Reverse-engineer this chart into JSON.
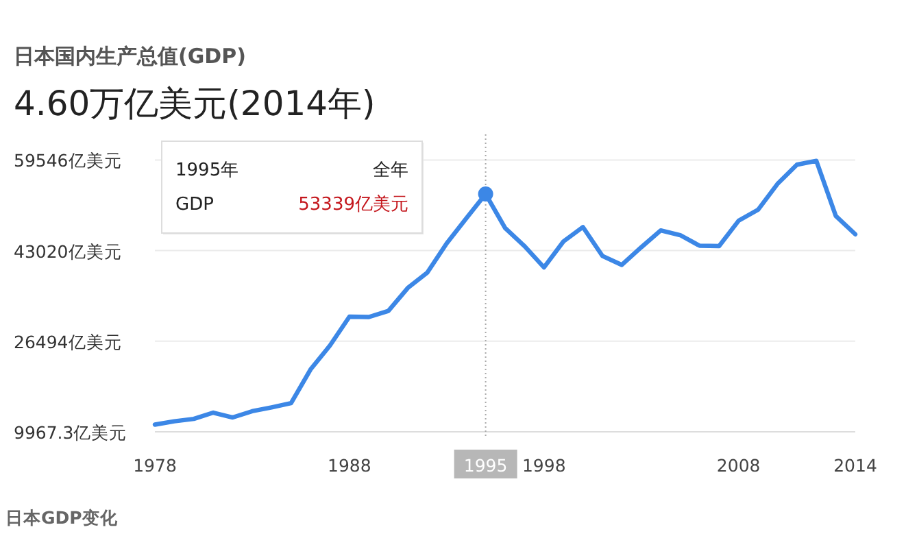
{
  "chart_data": {
    "type": "line",
    "title": "日本国内生产总值(GDP)",
    "subtitle": "4.60万亿美元(2014年)",
    "x": [
      1978,
      1979,
      1980,
      1981,
      1982,
      1983,
      1984,
      1985,
      1986,
      1987,
      1988,
      1989,
      1990,
      1991,
      1992,
      1993,
      1994,
      1995,
      1996,
      1997,
      1998,
      1999,
      2000,
      2001,
      2002,
      2003,
      2004,
      2005,
      2006,
      2007,
      2008,
      2009,
      2010,
      2011,
      2012,
      2013,
      2014
    ],
    "series": [
      {
        "color": "#3c87e6",
        "values": [
          11280,
          11880,
          12330,
          13460,
          12590,
          13720,
          14430,
          15210,
          21330,
          25710,
          30960,
          30900,
          32010,
          36210,
          39010,
          44340,
          48880,
          53339,
          47150,
          43820,
          39960,
          44690,
          47310,
          42060,
          40410,
          43630,
          46700,
          45840,
          43900,
          43850,
          48460,
          50460,
          55180,
          58690,
          59380,
          49330,
          46000
        ]
      }
    ],
    "xlim": [
      1978,
      2014
    ],
    "ylim": [
      9967.3,
      59546
    ],
    "xticks": [
      1978,
      1988,
      1995,
      1998,
      2008,
      2014
    ],
    "yticks": [
      {
        "value": 9967.3,
        "label": "9967.3亿美元"
      },
      {
        "value": 26494,
        "label": "26494亿美元"
      },
      {
        "value": 43020,
        "label": "43020亿美元"
      },
      {
        "value": 59546,
        "label": "59546亿美元"
      }
    ],
    "grid": "y",
    "ref_lines": [
      {
        "axis": "x",
        "value": 1995,
        "color": "#aaaaaa",
        "line_style": "dotted"
      }
    ],
    "annotations": [
      "1995年",
      "全年",
      "GDP",
      "53339亿美元",
      "日本GDP变化"
    ]
  }
}
